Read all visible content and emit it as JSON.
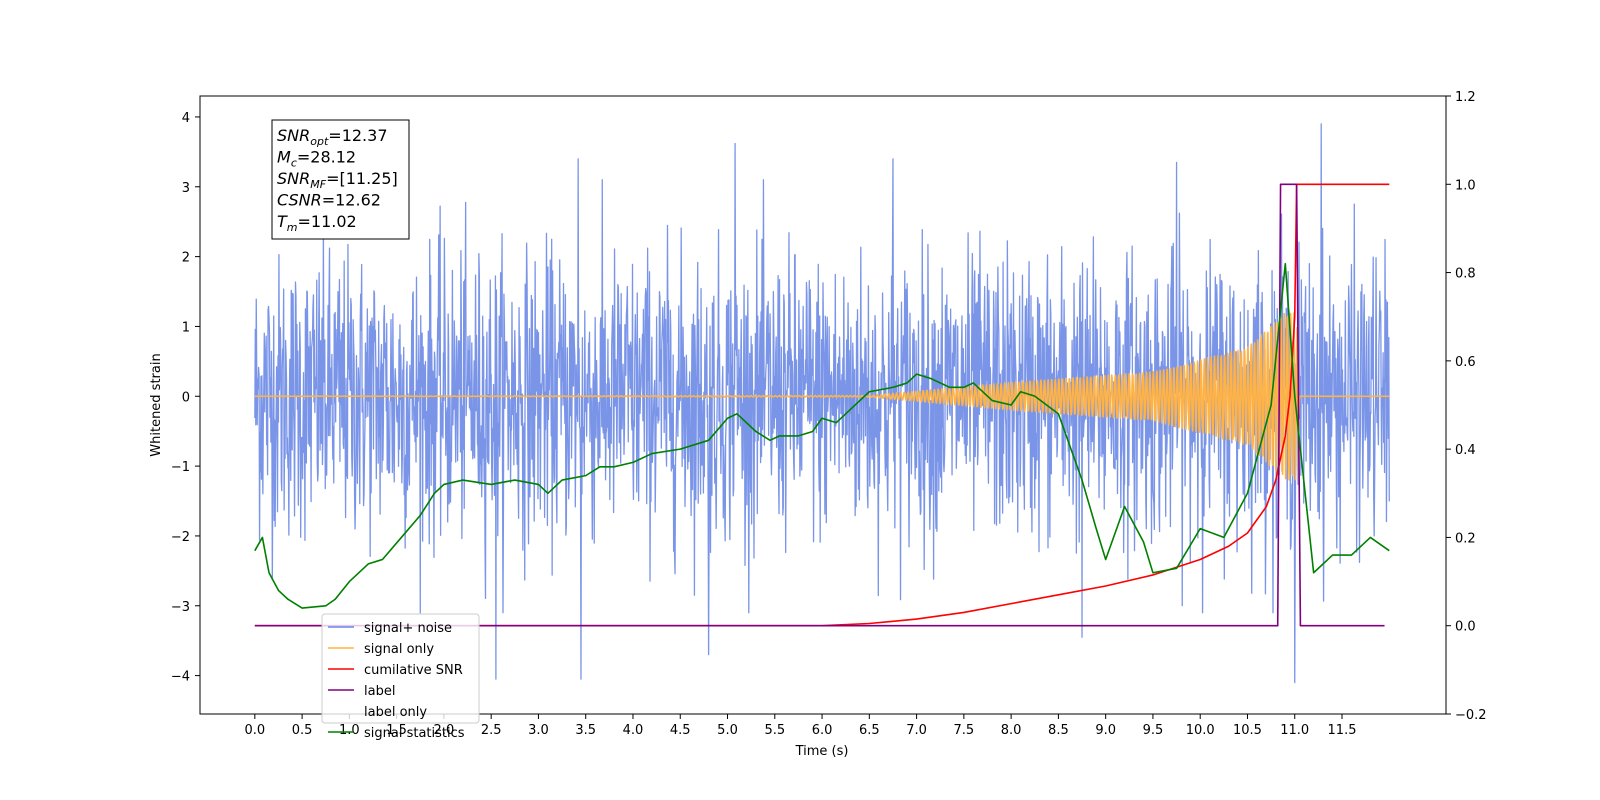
{
  "chart_data": {
    "type": "line",
    "xlabel": "Time (s)",
    "ylabel_left": "Whitened strain",
    "xlim": [
      -0.58,
      12.6
    ],
    "ylim_left": [
      -4.55,
      4.3
    ],
    "ylim_right": [
      -0.2,
      1.2
    ],
    "x_ticks": [
      0.0,
      0.5,
      1.0,
      1.5,
      2.0,
      2.5,
      3.0,
      3.5,
      4.0,
      4.5,
      5.0,
      5.5,
      6.0,
      6.5,
      7.0,
      7.5,
      8.0,
      8.5,
      9.0,
      9.5,
      10.0,
      10.5,
      11.0,
      11.5
    ],
    "x_tick_labels": [
      "0.0",
      "0.5",
      "1.0",
      "1.5",
      "2.0",
      "2.5",
      "3.0",
      "3.5",
      "4.0",
      "4.5",
      "5.0",
      "5.5",
      "6.0",
      "6.5",
      "7.0",
      "7.5",
      "8.0",
      "8.5",
      "9.0",
      "9.5",
      "10.0",
      "10.5",
      "11.0",
      "11.5"
    ],
    "y_ticks_left": [
      -4,
      -3,
      -2,
      -1,
      0,
      1,
      2,
      3,
      4
    ],
    "y_tick_labels_left": [
      "−4",
      "−3",
      "−2",
      "−1",
      "0",
      "1",
      "2",
      "3",
      "4"
    ],
    "y_ticks_right": [
      -0.2,
      0.0,
      0.2,
      0.4,
      0.6,
      0.8,
      1.0,
      1.2
    ],
    "y_tick_labels_right": [
      "−0.2",
      "0.0",
      "0.2",
      "0.4",
      "0.6",
      "0.8",
      "1.0",
      "1.2"
    ],
    "legend_position": "lower-left",
    "annotation": {
      "lines": [
        {
          "sym": "SNR",
          "sub": "opt",
          "value": "=12.37"
        },
        {
          "sym": "M",
          "sub": "c",
          "value": "=28.12"
        },
        {
          "sym": "SNR",
          "sub": "MF",
          "value": "=[11.25]"
        },
        {
          "sym": "CSNR",
          "sub": "",
          "value": "=12.62"
        },
        {
          "sym": "T",
          "sub": "m",
          "value": "=11.02"
        }
      ]
    },
    "series": [
      {
        "name": "signal+ noise",
        "axis": "left",
        "color": "#6b8ae6",
        "x_range": [
          0.0,
          12.0
        ],
        "noise_sigma": 1.0,
        "notable_peaks": [
          {
            "x": 5.08,
            "y": 3.62
          },
          {
            "x": 11.28,
            "y": 3.9
          },
          {
            "x": 6.75,
            "y": 3.4
          },
          {
            "x": 3.42,
            "y": 3.4
          },
          {
            "x": 9.75,
            "y": 3.35
          },
          {
            "x": 4.8,
            "y": -3.7
          },
          {
            "x": 11.0,
            "y": -4.1
          },
          {
            "x": 2.55,
            "y": -4.05
          },
          {
            "x": 3.45,
            "y": -4.05
          },
          {
            "x": 8.75,
            "y": -3.45
          }
        ]
      },
      {
        "name": "signal only",
        "axis": "left",
        "color": "#ffb347",
        "description_points": [
          [
            0.0,
            0.0
          ],
          [
            6.5,
            0.01
          ],
          [
            8.0,
            0.2
          ],
          [
            9.5,
            0.35
          ],
          [
            10.5,
            0.7
          ],
          [
            10.9,
            1.2
          ],
          [
            11.02,
            1.2
          ],
          [
            11.05,
            0.0
          ],
          [
            12.0,
            0.0
          ]
        ]
      },
      {
        "name": "cumilative SNR",
        "axis": "right",
        "color": "#ff0000",
        "x": [
          0.0,
          5.0,
          6.0,
          6.5,
          7.0,
          7.5,
          8.0,
          8.5,
          9.0,
          9.5,
          10.0,
          10.3,
          10.5,
          10.7,
          10.8,
          10.9,
          10.95,
          11.0,
          11.02,
          11.05,
          12.0
        ],
        "y": [
          0.0,
          0.0,
          0.0,
          0.005,
          0.015,
          0.03,
          0.05,
          0.07,
          0.09,
          0.115,
          0.15,
          0.18,
          0.21,
          0.27,
          0.33,
          0.43,
          0.52,
          0.7,
          1.0,
          1.0,
          1.0
        ]
      },
      {
        "name": "label",
        "axis": "right",
        "color": "#800080",
        "x": [
          0.0,
          10.82,
          10.85,
          11.02,
          11.06,
          11.95
        ],
        "y": [
          0.0,
          0.0,
          1.0,
          1.0,
          0.0,
          0.0
        ]
      },
      {
        "name": "label only",
        "axis": "right",
        "color": "#800080",
        "legend_only_hidden": true
      },
      {
        "name": "signal statistics",
        "axis": "right",
        "color": "#008000",
        "x": [
          0.0,
          0.08,
          0.15,
          0.25,
          0.35,
          0.5,
          0.75,
          0.85,
          1.0,
          1.2,
          1.35,
          1.55,
          1.75,
          1.9,
          2.0,
          2.2,
          2.5,
          2.75,
          3.0,
          3.1,
          3.25,
          3.5,
          3.65,
          3.8,
          4.0,
          4.2,
          4.5,
          4.8,
          5.0,
          5.1,
          5.3,
          5.45,
          5.55,
          5.75,
          5.9,
          6.0,
          6.15,
          6.4,
          6.5,
          6.75,
          6.9,
          7.0,
          7.15,
          7.35,
          7.5,
          7.6,
          7.8,
          8.0,
          8.1,
          8.25,
          8.5,
          8.75,
          8.9,
          9.0,
          9.2,
          9.4,
          9.5,
          9.75,
          10.0,
          10.25,
          10.5,
          10.75,
          10.9,
          11.0,
          11.2,
          11.4,
          11.6,
          11.8,
          12.0
        ],
        "y": [
          0.17,
          0.2,
          0.12,
          0.08,
          0.06,
          0.04,
          0.045,
          0.06,
          0.1,
          0.14,
          0.15,
          0.2,
          0.25,
          0.3,
          0.32,
          0.33,
          0.32,
          0.33,
          0.32,
          0.3,
          0.33,
          0.34,
          0.36,
          0.36,
          0.37,
          0.39,
          0.4,
          0.42,
          0.47,
          0.48,
          0.44,
          0.42,
          0.43,
          0.43,
          0.44,
          0.47,
          0.46,
          0.51,
          0.53,
          0.54,
          0.55,
          0.57,
          0.56,
          0.54,
          0.54,
          0.55,
          0.51,
          0.5,
          0.53,
          0.52,
          0.48,
          0.33,
          0.22,
          0.15,
          0.27,
          0.19,
          0.12,
          0.13,
          0.22,
          0.2,
          0.3,
          0.5,
          0.82,
          0.52,
          0.12,
          0.16,
          0.16,
          0.2,
          0.17
        ]
      }
    ]
  }
}
